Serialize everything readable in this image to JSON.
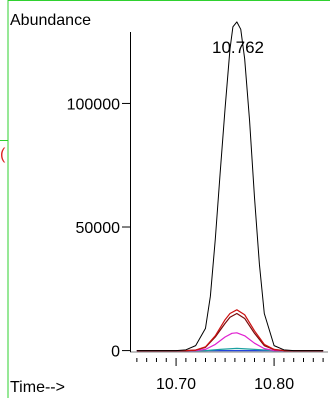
{
  "chart_data": {
    "type": "line",
    "ylabel": "Abundance",
    "xlabel": "Time-->",
    "peak_label": "10.762",
    "edge_mark": "(",
    "xlim": [
      10.653,
      10.855
    ],
    "ylim": [
      -3000,
      137000
    ],
    "x_ticks": [
      10.7,
      10.8
    ],
    "x_tick_labels": [
      "10.70",
      "10.80"
    ],
    "y_ticks": [
      0,
      50000,
      100000
    ],
    "y_tick_labels": [
      "0",
      "50000",
      "100000"
    ],
    "grid": false,
    "border_color": "#2fd12f",
    "series": [
      {
        "color": "#000000",
        "x": [
          10.66,
          10.7,
          10.71,
          10.72,
          10.73,
          10.735,
          10.74,
          10.745,
          10.75,
          10.755,
          10.758,
          10.762,
          10.766,
          10.77,
          10.775,
          10.78,
          10.785,
          10.79,
          10.8,
          10.81,
          10.82,
          10.85
        ],
        "y": [
          0,
          0,
          300,
          2000,
          9000,
          22000,
          45000,
          72000,
          98000,
          122000,
          131000,
          133000,
          130000,
          118000,
          93000,
          62000,
          35000,
          15000,
          2000,
          300,
          0,
          0
        ]
      },
      {
        "color": "#cc1111",
        "x": [
          10.66,
          10.71,
          10.72,
          10.73,
          10.74,
          10.75,
          10.755,
          10.762,
          10.77,
          10.78,
          10.79,
          10.8,
          10.81,
          10.85
        ],
        "y": [
          0,
          0,
          200,
          1500,
          6000,
          12500,
          15000,
          16500,
          14500,
          8000,
          2500,
          500,
          0,
          0
        ]
      },
      {
        "color": "#7a0a0a",
        "x": [
          10.66,
          10.71,
          10.72,
          10.73,
          10.74,
          10.75,
          10.755,
          10.762,
          10.77,
          10.78,
          10.79,
          10.8,
          10.81,
          10.85
        ],
        "y": [
          0,
          0,
          200,
          1300,
          5500,
          11000,
          13500,
          15000,
          13000,
          7000,
          2000,
          400,
          0,
          0
        ]
      },
      {
        "color": "#e020d0",
        "x": [
          10.66,
          10.72,
          10.73,
          10.74,
          10.75,
          10.757,
          10.762,
          10.77,
          10.78,
          10.79,
          10.8,
          10.85
        ],
        "y": [
          0,
          0,
          500,
          2500,
          5500,
          7000,
          7200,
          6000,
          3000,
          800,
          0,
          0
        ]
      },
      {
        "color": "#1aa0a0",
        "x": [
          10.66,
          10.73,
          10.745,
          10.762,
          10.78,
          10.8,
          10.85
        ],
        "y": [
          0,
          0,
          500,
          900,
          500,
          0,
          0
        ]
      },
      {
        "color": "#2244dd",
        "x": [
          10.66,
          10.85
        ],
        "y": [
          0,
          0
        ]
      }
    ]
  }
}
